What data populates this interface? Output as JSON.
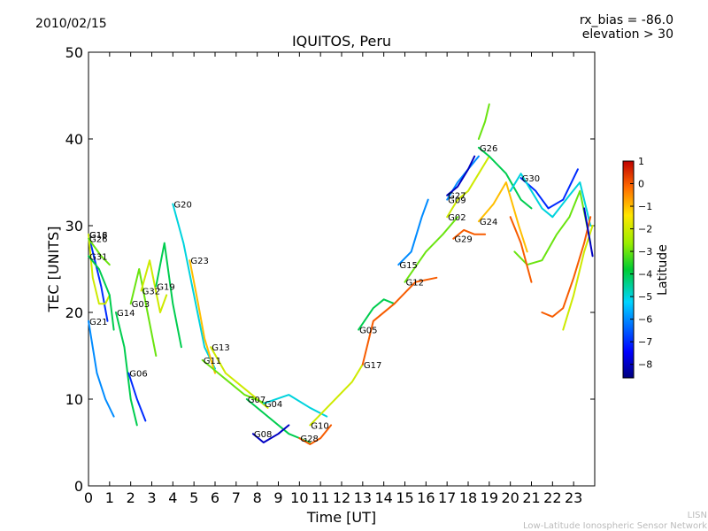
{
  "header": {
    "date": "2010/02/15",
    "rx_bias": "rx_bias = -86.0",
    "elevation": "elevation > 30"
  },
  "footer": {
    "line1": "LISN",
    "line2": "Low-Latitude Ionospheric Sensor Network"
  },
  "colorbar": {
    "label": "Latitude",
    "ticks": [
      "1",
      "0",
      "−1",
      "−2",
      "−3",
      "−4",
      "−5",
      "−6",
      "−7",
      "−8"
    ],
    "range": [
      -8.6,
      1.0
    ]
  },
  "chart_data": {
    "type": "line",
    "title": "IQUITOS, Peru",
    "xlabel": "Time [UT]",
    "ylabel": "TEC [UNITS]",
    "xlim": [
      0,
      24
    ],
    "ylim": [
      0,
      50
    ],
    "xticks": [
      "0",
      "1",
      "2",
      "3",
      "4",
      "5",
      "6",
      "7",
      "8",
      "9",
      "10",
      "11",
      "12",
      "13",
      "14",
      "15",
      "16",
      "17",
      "18",
      "19",
      "20",
      "21",
      "22",
      "23"
    ],
    "yticks": [
      "0",
      "10",
      "20",
      "30",
      "40",
      "50"
    ],
    "series": [
      {
        "name": "G18",
        "lat": -7,
        "points": [
          [
            0.0,
            29
          ],
          [
            0.3,
            26
          ],
          [
            0.6,
            23
          ],
          [
            0.9,
            19
          ]
        ]
      },
      {
        "name": "G16",
        "lat": -2,
        "points": [
          [
            0.0,
            29
          ],
          [
            0.2,
            24
          ],
          [
            0.5,
            21
          ],
          [
            0.8,
            21
          ],
          [
            1.0,
            22
          ]
        ]
      },
      {
        "name": "G26",
        "lat": -3,
        "points": [
          [
            0.0,
            28.5
          ],
          [
            0.3,
            27.5
          ],
          [
            0.6,
            26.5
          ],
          [
            1.0,
            25.5
          ]
        ]
      },
      {
        "name": "G31",
        "lat": -4,
        "points": [
          [
            0.0,
            26.5
          ],
          [
            0.5,
            25
          ],
          [
            1.0,
            22
          ],
          [
            1.2,
            18
          ]
        ]
      },
      {
        "name": "G21",
        "lat": -6,
        "points": [
          [
            0.0,
            19
          ],
          [
            0.4,
            13
          ],
          [
            0.8,
            10
          ],
          [
            1.2,
            8
          ]
        ]
      },
      {
        "name": "G14",
        "lat": -4,
        "points": [
          [
            1.3,
            20
          ],
          [
            1.7,
            16
          ],
          [
            2.0,
            10
          ],
          [
            2.3,
            7
          ]
        ]
      },
      {
        "name": "G06",
        "lat": -7,
        "points": [
          [
            1.9,
            13
          ],
          [
            2.3,
            10
          ],
          [
            2.7,
            7.5
          ]
        ]
      },
      {
        "name": "G03",
        "lat": -3,
        "points": [
          [
            2.0,
            21
          ],
          [
            2.4,
            25
          ],
          [
            2.8,
            20
          ],
          [
            3.2,
            15
          ]
        ]
      },
      {
        "name": "G32",
        "lat": -2,
        "points": [
          [
            2.5,
            22.5
          ],
          [
            2.9,
            26
          ],
          [
            3.4,
            20
          ],
          [
            3.7,
            22
          ]
        ]
      },
      {
        "name": "G19",
        "lat": -4,
        "points": [
          [
            3.2,
            23
          ],
          [
            3.6,
            28
          ],
          [
            4.0,
            21
          ],
          [
            4.4,
            16
          ]
        ]
      },
      {
        "name": "G20",
        "lat": -5,
        "points": [
          [
            4.0,
            32.5
          ],
          [
            4.5,
            28
          ],
          [
            5.0,
            22
          ],
          [
            5.5,
            16
          ],
          [
            6.0,
            13.5
          ]
        ]
      },
      {
        "name": "G23",
        "lat": -1,
        "points": [
          [
            4.8,
            26
          ],
          [
            5.2,
            21
          ],
          [
            5.5,
            17
          ],
          [
            6.0,
            13
          ]
        ]
      },
      {
        "name": "G13",
        "lat": -2,
        "points": [
          [
            5.8,
            16
          ],
          [
            6.5,
            13
          ],
          [
            7.5,
            11
          ],
          [
            8.5,
            9
          ]
        ]
      },
      {
        "name": "G11",
        "lat": -3,
        "points": [
          [
            5.4,
            14.5
          ],
          [
            6.4,
            12.5
          ],
          [
            7.4,
            10.5
          ],
          [
            8.4,
            9.5
          ]
        ]
      },
      {
        "name": "G07",
        "lat": -4,
        "points": [
          [
            7.5,
            10
          ],
          [
            8.5,
            8
          ],
          [
            9.5,
            6
          ],
          [
            10.5,
            5
          ]
        ]
      },
      {
        "name": "G08",
        "lat": -8,
        "points": [
          [
            7.8,
            6
          ],
          [
            8.3,
            5
          ],
          [
            9.0,
            6
          ],
          [
            9.5,
            7
          ]
        ]
      },
      {
        "name": "G04",
        "lat": -5,
        "points": [
          [
            8.3,
            9.5
          ],
          [
            9.5,
            10.5
          ],
          [
            10.5,
            9
          ],
          [
            11.3,
            8
          ]
        ]
      },
      {
        "name": "G28",
        "lat": 0,
        "points": [
          [
            10.0,
            5.5
          ],
          [
            10.5,
            4.8
          ],
          [
            11.0,
            5.5
          ],
          [
            11.5,
            7
          ]
        ]
      },
      {
        "name": "G10",
        "lat": -2,
        "points": [
          [
            10.5,
            7
          ],
          [
            11.5,
            9.5
          ],
          [
            12.5,
            12
          ],
          [
            13.0,
            14
          ]
        ]
      },
      {
        "name": "G05",
        "lat": -4,
        "points": [
          [
            12.8,
            18
          ],
          [
            13.5,
            20.5
          ],
          [
            14.0,
            21.5
          ],
          [
            14.5,
            21
          ]
        ]
      },
      {
        "name": "G17",
        "lat": 0,
        "points": [
          [
            13.0,
            14
          ],
          [
            13.5,
            19
          ],
          [
            14.5,
            21
          ],
          [
            15.5,
            23.5
          ],
          [
            16.5,
            24
          ]
        ]
      },
      {
        "name": "G15",
        "lat": -6,
        "points": [
          [
            14.7,
            25.5
          ],
          [
            15.3,
            27
          ],
          [
            15.8,
            31
          ],
          [
            16.1,
            33
          ]
        ]
      },
      {
        "name": "G12",
        "lat": -3,
        "points": [
          [
            15.0,
            23.5
          ],
          [
            16.0,
            27
          ],
          [
            16.8,
            29
          ],
          [
            17.5,
            31
          ]
        ]
      },
      {
        "name": "G09",
        "lat": -6,
        "points": [
          [
            17.0,
            33
          ],
          [
            17.5,
            35
          ],
          [
            18.0,
            36.5
          ],
          [
            18.5,
            38
          ]
        ]
      },
      {
        "name": "G27",
        "lat": -8,
        "points": [
          [
            17.0,
            33.5
          ],
          [
            17.5,
            34.5
          ],
          [
            18.0,
            36.5
          ],
          [
            18.3,
            38
          ]
        ]
      },
      {
        "name": "G02",
        "lat": -2,
        "points": [
          [
            17.0,
            31
          ],
          [
            17.5,
            33
          ],
          [
            18.0,
            34
          ],
          [
            18.5,
            36
          ],
          [
            19.0,
            38
          ]
        ]
      },
      {
        "name": "G26",
        "lat": -4,
        "points": [
          [
            18.5,
            39
          ],
          [
            19.0,
            38
          ],
          [
            19.8,
            36
          ],
          [
            20.5,
            33
          ],
          [
            21.0,
            32
          ]
        ]
      },
      {
        "name": "G29",
        "lat": 0,
        "points": [
          [
            17.3,
            28.5
          ],
          [
            17.8,
            29.5
          ],
          [
            18.3,
            29
          ],
          [
            18.8,
            29
          ]
        ]
      },
      {
        "name": "G24",
        "lat": -1,
        "points": [
          [
            18.5,
            30.5
          ],
          [
            19.2,
            32.5
          ],
          [
            19.8,
            35
          ],
          [
            20.4,
            30
          ],
          [
            20.8,
            27
          ]
        ]
      },
      {
        "name": "G30",
        "lat": -7,
        "points": [
          [
            20.5,
            35.5
          ],
          [
            21.2,
            34
          ],
          [
            21.8,
            32
          ],
          [
            22.5,
            33
          ],
          [
            23.2,
            36.5
          ]
        ]
      },
      {
        "name": "",
        "lat": -3,
        "points": [
          [
            18.5,
            40
          ],
          [
            18.8,
            42
          ],
          [
            19.0,
            44
          ]
        ]
      },
      {
        "name": "",
        "lat": -5,
        "points": [
          [
            20.0,
            34
          ],
          [
            20.5,
            36
          ],
          [
            21.0,
            34
          ],
          [
            21.5,
            32
          ],
          [
            22.0,
            31
          ],
          [
            22.8,
            33.5
          ],
          [
            23.3,
            35
          ],
          [
            23.8,
            30
          ]
        ]
      },
      {
        "name": "",
        "lat": -3,
        "points": [
          [
            20.2,
            27
          ],
          [
            20.8,
            25.5
          ],
          [
            21.5,
            26
          ],
          [
            22.2,
            29
          ],
          [
            22.8,
            31
          ],
          [
            23.3,
            34
          ],
          [
            23.8,
            28
          ]
        ]
      },
      {
        "name": "",
        "lat": 0,
        "points": [
          [
            21.5,
            20
          ],
          [
            22.0,
            19.5
          ],
          [
            22.5,
            20.5
          ],
          [
            23.0,
            24
          ],
          [
            23.5,
            28
          ],
          [
            23.8,
            31
          ]
        ]
      },
      {
        "name": "",
        "lat": -2,
        "points": [
          [
            22.5,
            18
          ],
          [
            23.0,
            22
          ],
          [
            23.5,
            27
          ],
          [
            23.9,
            30
          ]
        ]
      },
      {
        "name": "",
        "lat": 0,
        "points": [
          [
            20.0,
            31
          ],
          [
            20.5,
            28
          ],
          [
            21.0,
            23.5
          ]
        ]
      },
      {
        "name": "",
        "lat": -8,
        "points": [
          [
            23.5,
            32
          ],
          [
            23.9,
            26.5
          ]
        ]
      }
    ]
  }
}
